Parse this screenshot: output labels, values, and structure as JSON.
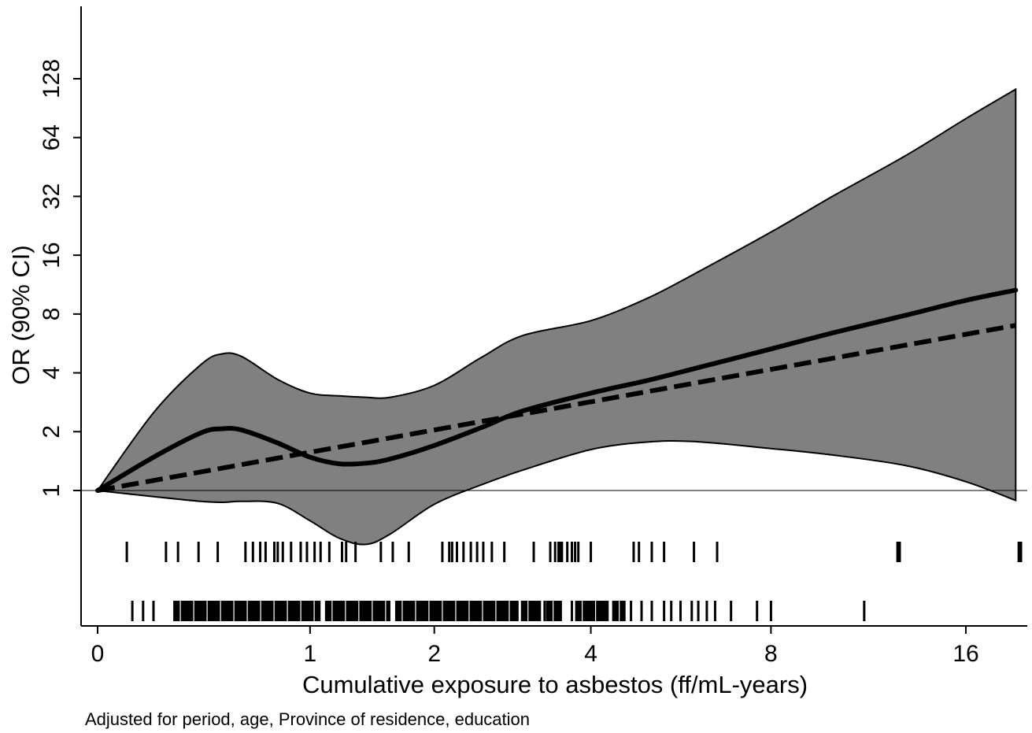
{
  "chart_data": {
    "type": "line",
    "xlabel": "Cumulative exposure to asbestos (ff/mL-years)",
    "ylabel": "OR (90% CI)",
    "note": "Adjusted for period, age, Province of residence, education",
    "x_scale": "log2(x+1)",
    "y_scale": "log2",
    "xlim": [
      0,
      19
    ],
    "ylim": [
      1,
      128
    ],
    "x_ticks": [
      {
        "value": 0,
        "label": "0"
      },
      {
        "value": 1,
        "label": "1"
      },
      {
        "value": 2,
        "label": "2"
      },
      {
        "value": 4,
        "label": "4"
      },
      {
        "value": 8,
        "label": "8"
      },
      {
        "value": 16,
        "label": "16"
      }
    ],
    "y_ticks": [
      {
        "value": 1,
        "label": "1"
      },
      {
        "value": 2,
        "label": "2"
      },
      {
        "value": 4,
        "label": "4"
      },
      {
        "value": 8,
        "label": "8"
      },
      {
        "value": 16,
        "label": "16"
      },
      {
        "value": 32,
        "label": "32"
      },
      {
        "value": 64,
        "label": "64"
      },
      {
        "value": 128,
        "label": "128"
      }
    ],
    "reference_line_y": 1,
    "colors": {
      "ci_band": "#808080",
      "line": "#000000",
      "background": "#ffffff"
    },
    "spline": {
      "x": [
        0,
        0.2,
        0.4,
        0.5,
        0.6,
        0.8,
        1.0,
        1.2,
        1.4,
        1.6,
        2.0,
        2.5,
        3.0,
        4.0,
        5.0,
        6.0,
        8.0,
        10.0,
        13.0,
        16.0,
        19.0
      ],
      "or": [
        1.0,
        1.48,
        1.97,
        2.07,
        2.04,
        1.75,
        1.48,
        1.37,
        1.38,
        1.45,
        1.7,
        2.1,
        2.55,
        3.15,
        3.65,
        4.2,
        5.3,
        6.4,
        7.9,
        9.4,
        10.6
      ],
      "upper": [
        1.0,
        2.5,
        4.4,
        5.0,
        4.85,
        3.7,
        3.15,
        3.05,
        3.0,
        3.0,
        3.45,
        4.8,
        6.2,
        7.4,
        9.6,
        12.8,
        21.0,
        32.0,
        52.0,
        80.0,
        113.0
      ],
      "lower": [
        1.0,
        0.93,
        0.88,
        0.87,
        0.88,
        0.86,
        0.7,
        0.57,
        0.53,
        0.6,
        0.85,
        1.07,
        1.27,
        1.62,
        1.77,
        1.78,
        1.64,
        1.52,
        1.34,
        1.11,
        0.89
      ]
    },
    "linear": {
      "x": [
        0,
        19
      ],
      "or": [
        1.0,
        7.0
      ]
    },
    "rug_cases": [
      0.1,
      0.25,
      0.3,
      0.39,
      0.48,
      0.62,
      0.66,
      0.7,
      0.73,
      0.78,
      0.8,
      0.83,
      0.88,
      0.94,
      0.98,
      1.03,
      1.07,
      1.13,
      1.22,
      1.25,
      1.32,
      1.52,
      1.62,
      1.76,
      2.08,
      2.15,
      2.18,
      2.23,
      2.3,
      2.38,
      2.45,
      2.52,
      2.62,
      2.77,
      3.15,
      3.38,
      3.45,
      3.5,
      3.52,
      3.55,
      3.63,
      3.7,
      3.75,
      3.8,
      4.0,
      4.75,
      4.85,
      5.1,
      5.35,
      6.0,
      6.55,
      12.6,
      12.7,
      19.2,
      19.35
    ],
    "rug_controls_ticks": [
      0.12,
      0.16,
      0.2,
      1.9,
      2.07,
      3.3,
      3.7,
      3.95,
      4.05,
      4.2,
      4.5,
      4.7,
      4.9,
      5.1,
      5.35,
      5.5,
      5.7,
      5.95,
      6.1,
      6.3,
      6.5,
      6.9,
      7.6,
      8.0,
      11.2
    ],
    "rug_controls_blocks": [
      [
        0.28,
        1.07
      ],
      [
        1.1,
        1.6
      ],
      [
        1.64,
        2.95
      ],
      [
        2.98,
        3.25
      ],
      [
        3.32,
        3.55
      ],
      [
        3.75,
        4.3
      ],
      [
        4.36,
        4.6
      ]
    ]
  }
}
